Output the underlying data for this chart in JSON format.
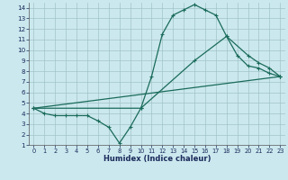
{
  "xlabel": "Humidex (Indice chaleur)",
  "background_color": "#cbe8ee",
  "grid_color": "#a0c4c8",
  "line_color": "#1a6b5a",
  "xlim": [
    -0.5,
    23.5
  ],
  "ylim": [
    1,
    14.5
  ],
  "xticks": [
    0,
    1,
    2,
    3,
    4,
    5,
    6,
    7,
    8,
    9,
    10,
    11,
    12,
    13,
    14,
    15,
    16,
    17,
    18,
    19,
    20,
    21,
    22,
    23
  ],
  "yticks": [
    1,
    2,
    3,
    4,
    5,
    6,
    7,
    8,
    9,
    10,
    11,
    12,
    13,
    14
  ],
  "line1_x": [
    0,
    1,
    2,
    3,
    4,
    5,
    6,
    7,
    8,
    9,
    10,
    11,
    12,
    13,
    14,
    15,
    16,
    17,
    18,
    19,
    20,
    21,
    22,
    23
  ],
  "line1_y": [
    4.5,
    4.0,
    3.8,
    3.8,
    3.8,
    3.8,
    3.3,
    2.7,
    1.2,
    2.7,
    4.5,
    7.5,
    11.5,
    13.3,
    13.8,
    14.3,
    13.8,
    13.3,
    11.3,
    9.5,
    8.5,
    8.3,
    7.8,
    7.5
  ],
  "line2_x": [
    0,
    10,
    15,
    18,
    20,
    21,
    22,
    23
  ],
  "line2_y": [
    4.5,
    4.5,
    9.0,
    11.3,
    9.5,
    8.8,
    8.3,
    7.5
  ],
  "line3_x": [
    0,
    23
  ],
  "line3_y": [
    4.5,
    7.5
  ],
  "linewidth": 0.9
}
